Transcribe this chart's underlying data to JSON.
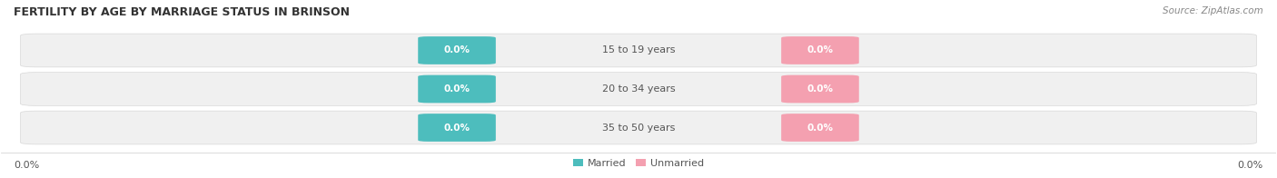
{
  "title": "FERTILITY BY AGE BY MARRIAGE STATUS IN BRINSON",
  "source": "Source: ZipAtlas.com",
  "categories": [
    "15 to 19 years",
    "20 to 34 years",
    "35 to 50 years"
  ],
  "married_values": [
    0.0,
    0.0,
    0.0
  ],
  "unmarried_values": [
    0.0,
    0.0,
    0.0
  ],
  "married_color": "#4dbdbd",
  "unmarried_color": "#f4a0b0",
  "bar_bg_color": "#f0f0f0",
  "bar_border_color": "#d8d8d8",
  "left_label": "0.0%",
  "right_label": "0.0%",
  "legend_married": "Married",
  "legend_unmarried": "Unmarried",
  "title_fontsize": 9,
  "source_fontsize": 7.5,
  "label_fontsize": 8,
  "category_fontsize": 8,
  "value_fontsize": 7.5,
  "background_color": "#ffffff"
}
